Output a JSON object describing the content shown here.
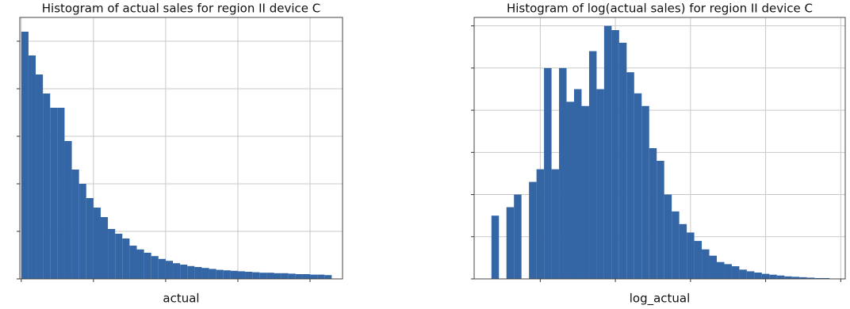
{
  "chart_data": [
    {
      "type": "histogram",
      "title": "Histogram of actual sales for region II device C",
      "x_label": "actual",
      "color": "#3465a4",
      "grid": true,
      "bins": [
        0,
        0.1,
        0.2,
        0.3,
        0.4,
        0.5,
        0.6,
        0.7,
        0.8,
        0.9,
        1,
        1.1,
        1.2,
        1.3,
        1.4,
        1.5,
        1.6,
        1.7,
        1.8,
        1.9,
        2,
        2.1,
        2.2,
        2.3,
        2.4,
        2.5,
        2.6,
        2.7,
        2.8,
        2.9,
        3,
        3.1,
        3.2,
        3.3,
        3.4,
        3.5,
        3.6,
        3.7,
        3.8,
        3.9,
        4,
        4.1,
        4.2,
        4.3
      ],
      "values": [
        5.2,
        4.7,
        4.3,
        3.9,
        3.6,
        3.6,
        2.9,
        2.3,
        2.0,
        1.7,
        1.5,
        1.3,
        1.05,
        0.95,
        0.85,
        0.7,
        0.62,
        0.55,
        0.48,
        0.42,
        0.38,
        0.33,
        0.3,
        0.27,
        0.25,
        0.23,
        0.21,
        0.19,
        0.18,
        0.17,
        0.16,
        0.15,
        0.14,
        0.13,
        0.13,
        0.12,
        0.12,
        0.11,
        0.1,
        0.1,
        0.09,
        0.09,
        0.08
      ],
      "xlim": [
        -0.02,
        4.45
      ],
      "xticks": [
        0,
        1,
        2,
        3,
        4
      ],
      "ylim": [
        0,
        5.5
      ],
      "yticks": [
        0,
        1,
        2,
        3,
        4,
        5
      ]
    },
    {
      "type": "histogram",
      "title": "Histogram of log(actual sales) for region II device C",
      "x_label": "log_actual",
      "color": "#3465a4",
      "grid": true,
      "bins": [
        0.35,
        0.45,
        0.55,
        0.65,
        0.75,
        0.85,
        0.95,
        1.05,
        1.15,
        1.25,
        1.35,
        1.45,
        1.55,
        1.65,
        1.75,
        1.85,
        1.95,
        2.05,
        2.15,
        2.25,
        2.35,
        2.45,
        2.55,
        2.65,
        2.75,
        2.85,
        2.95,
        3.05,
        3.15,
        3.25,
        3.35,
        3.45,
        3.55,
        3.65,
        3.75,
        3.85,
        3.95,
        4.05,
        4.15,
        4.25,
        4.35,
        4.45,
        4.55,
        4.65,
        4.75,
        4.85
      ],
      "values": [
        1.5,
        0,
        1.7,
        2.0,
        0,
        2.3,
        2.6,
        5.0,
        2.6,
        5.0,
        4.2,
        4.5,
        4.1,
        5.4,
        4.5,
        6.0,
        5.9,
        5.6,
        4.9,
        4.4,
        4.1,
        3.1,
        2.8,
        2.0,
        1.6,
        1.3,
        1.1,
        0.9,
        0.7,
        0.55,
        0.4,
        0.35,
        0.3,
        0.22,
        0.18,
        0.15,
        0.12,
        0.1,
        0.08,
        0.06,
        0.05,
        0.04,
        0.03,
        0.02,
        0.02
      ],
      "xlim": [
        0.12,
        5.06
      ],
      "xticks": [
        1,
        2,
        3,
        4,
        5
      ],
      "ylim": [
        0,
        6.2
      ],
      "yticks": [
        0,
        1,
        2,
        3,
        4,
        5,
        6
      ]
    }
  ]
}
